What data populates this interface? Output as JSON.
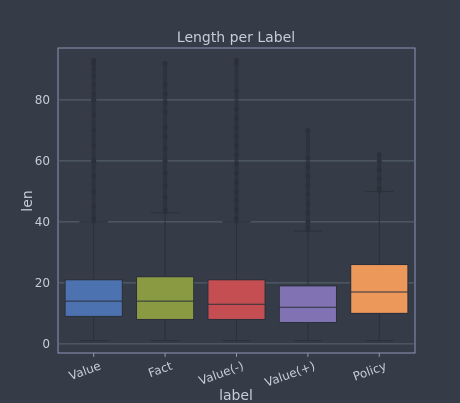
{
  "chart_data": {
    "type": "box",
    "title": "Length per Label",
    "xlabel": "label",
    "ylabel": "len",
    "ylim": [
      -3,
      97
    ],
    "yticks": [
      0,
      20,
      40,
      60,
      80
    ],
    "grid": true,
    "categories": [
      "Value",
      "Fact",
      "Value(-)",
      "Value(+)",
      "Policy"
    ],
    "colors": [
      "#4c72b0",
      "#8a9a43",
      "#c44e52",
      "#8173b3",
      "#ec985a"
    ],
    "boxes": [
      {
        "whisker_low": 1,
        "q1": 9,
        "median": 14,
        "q3": 21,
        "whisker_high": 40,
        "outliers": [
          41,
          45,
          50,
          55,
          60,
          65,
          70,
          75,
          80,
          82,
          85,
          88,
          90,
          92,
          93
        ]
      },
      {
        "whisker_low": 1,
        "q1": 8,
        "median": 14,
        "q3": 22,
        "whisker_high": 43,
        "outliers": [
          44,
          48,
          52,
          56,
          60,
          64,
          68,
          71,
          76,
          79,
          82,
          85,
          92
        ]
      },
      {
        "whisker_low": 1,
        "q1": 8,
        "median": 13,
        "q3": 21,
        "whisker_high": 40,
        "outliers": [
          41,
          44,
          47,
          50,
          53,
          56,
          59,
          62,
          65,
          68,
          71,
          74,
          77,
          83,
          92,
          93
        ]
      },
      {
        "whisker_low": 1,
        "q1": 7,
        "median": 12,
        "q3": 19,
        "whisker_high": 37,
        "outliers": [
          38,
          40,
          43,
          46,
          49,
          52,
          55,
          58,
          61,
          70
        ]
      },
      {
        "whisker_low": 1,
        "q1": 10,
        "median": 17,
        "q3": 26,
        "whisker_high": 50,
        "outliers": [
          51,
          54,
          57,
          60,
          62
        ]
      }
    ]
  }
}
